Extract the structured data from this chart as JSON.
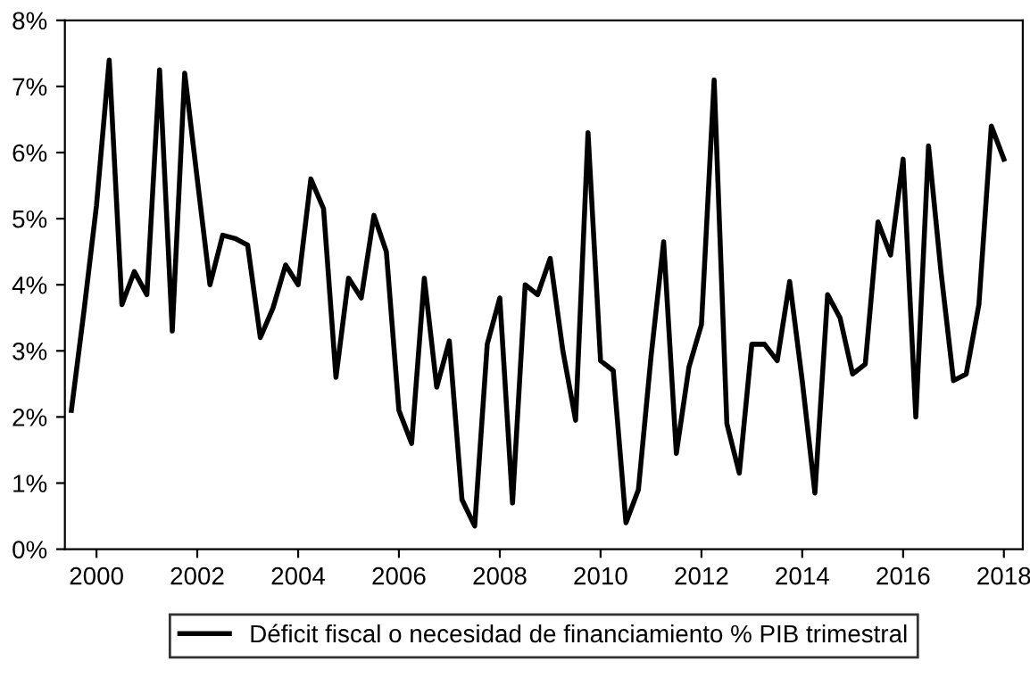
{
  "chart_data": {
    "type": "line",
    "legend": "bottom",
    "marker": "none",
    "line_style": "solid",
    "grid": false,
    "xlim": [
      "1999-11-15",
      "2018-11-15"
    ],
    "xticks": [
      {
        "value": "2000-07-01",
        "label": "2000"
      },
      {
        "value": "2002-07-01",
        "label": "2002"
      },
      {
        "value": "2004-07-01",
        "label": "2004"
      },
      {
        "value": "2006-07-01",
        "label": "2006"
      },
      {
        "value": "2008-07-01",
        "label": "2008"
      },
      {
        "value": "2010-07-01",
        "label": "2010"
      },
      {
        "value": "2012-07-01",
        "label": "2012"
      },
      {
        "value": "2014-07-01",
        "label": "2014"
      },
      {
        "value": "2016-07-01",
        "label": "2016"
      },
      {
        "value": "2018-07-01",
        "label": "2018"
      }
    ],
    "ylim": [
      0,
      8
    ],
    "yticks": [
      {
        "value": 0,
        "label": "0%"
      },
      {
        "value": 1,
        "label": "1%"
      },
      {
        "value": 2,
        "label": "2%"
      },
      {
        "value": 3,
        "label": "3%"
      },
      {
        "value": 4,
        "label": "4%"
      },
      {
        "value": 5,
        "label": "5%"
      },
      {
        "value": 6,
        "label": "6%"
      },
      {
        "value": 7,
        "label": "7%"
      },
      {
        "value": 8,
        "label": "8%"
      }
    ],
    "x": [
      "2000-01",
      "2000-04",
      "2000-07",
      "2000-10",
      "2001-01",
      "2001-04",
      "2001-07",
      "2001-10",
      "2002-01",
      "2002-04",
      "2002-07",
      "2002-10",
      "2003-01",
      "2003-04",
      "2003-07",
      "2003-10",
      "2004-01",
      "2004-04",
      "2004-07",
      "2004-10",
      "2005-01",
      "2005-04",
      "2005-07",
      "2005-10",
      "2006-01",
      "2006-04",
      "2006-07",
      "2006-10",
      "2007-01",
      "2007-04",
      "2007-07",
      "2007-10",
      "2008-01",
      "2008-04",
      "2008-07",
      "2008-10",
      "2009-01",
      "2009-04",
      "2009-07",
      "2009-10",
      "2010-01",
      "2010-04",
      "2010-07",
      "2010-10",
      "2011-01",
      "2011-04",
      "2011-07",
      "2011-10",
      "2012-01",
      "2012-04",
      "2012-07",
      "2012-10",
      "2013-01",
      "2013-04",
      "2013-07",
      "2013-10",
      "2014-01",
      "2014-04",
      "2014-07",
      "2014-10",
      "2015-01",
      "2015-04",
      "2015-07",
      "2015-10",
      "2016-01",
      "2016-04",
      "2016-07",
      "2016-10",
      "2017-01",
      "2017-04",
      "2017-07",
      "2017-10",
      "2018-01",
      "2018-04",
      "2018-07"
    ],
    "series": [
      {
        "name": "Déficit fiscal o necesidad de financiamiento % PIB trimestral",
        "color": "#000000",
        "values": [
          2.1,
          3.6,
          5.2,
          7.4,
          3.7,
          4.2,
          3.85,
          7.25,
          3.3,
          7.2,
          5.6,
          4.0,
          4.75,
          4.7,
          4.6,
          3.2,
          3.65,
          4.3,
          4.0,
          5.6,
          5.15,
          2.6,
          4.1,
          3.8,
          5.05,
          4.5,
          2.1,
          1.6,
          4.1,
          2.45,
          3.15,
          0.75,
          0.35,
          3.1,
          3.8,
          0.7,
          4.0,
          3.85,
          4.4,
          3.0,
          1.95,
          6.3,
          2.85,
          2.7,
          0.4,
          0.9,
          2.9,
          4.65,
          1.45,
          2.75,
          3.4,
          7.1,
          1.9,
          1.15,
          3.1,
          3.1,
          2.85,
          4.05,
          2.55,
          0.85,
          3.85,
          3.5,
          2.65,
          2.8,
          4.95,
          4.45,
          5.9,
          2.0,
          6.1,
          4.2,
          2.55,
          2.65,
          3.7,
          6.4,
          5.9
        ]
      }
    ]
  }
}
